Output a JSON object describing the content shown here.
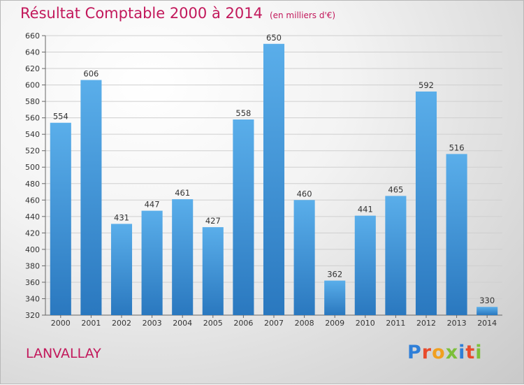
{
  "chart_data": {
    "type": "bar",
    "title": "Résultat Comptable 2000 à 2014",
    "subtitle": "(en milliers d'€)",
    "categories": [
      "2000",
      "2001",
      "2002",
      "2003",
      "2004",
      "2005",
      "2006",
      "2007",
      "2008",
      "2009",
      "2010",
      "2011",
      "2012",
      "2013",
      "2014"
    ],
    "values": [
      554,
      606,
      431,
      447,
      461,
      427,
      558,
      650,
      460,
      362,
      441,
      465,
      592,
      516,
      330
    ],
    "ylim": [
      320,
      660
    ],
    "yticks": [
      320,
      340,
      360,
      380,
      400,
      420,
      440,
      460,
      480,
      500,
      520,
      540,
      560,
      580,
      600,
      620,
      640,
      660
    ],
    "grid": true,
    "bar_color": "#3a8fd6",
    "xlabel": "",
    "ylabel": ""
  },
  "footer": {
    "city": "LANVALLAY",
    "brand_letters": [
      "P",
      "r",
      "o",
      "x",
      "i",
      "t",
      "i"
    ],
    "brand_colors": [
      "#2f7fd8",
      "#e84b2c",
      "#f0a020",
      "#7cbf3a",
      "#2f7fd8",
      "#e84b2c",
      "#7cbf3a"
    ]
  }
}
